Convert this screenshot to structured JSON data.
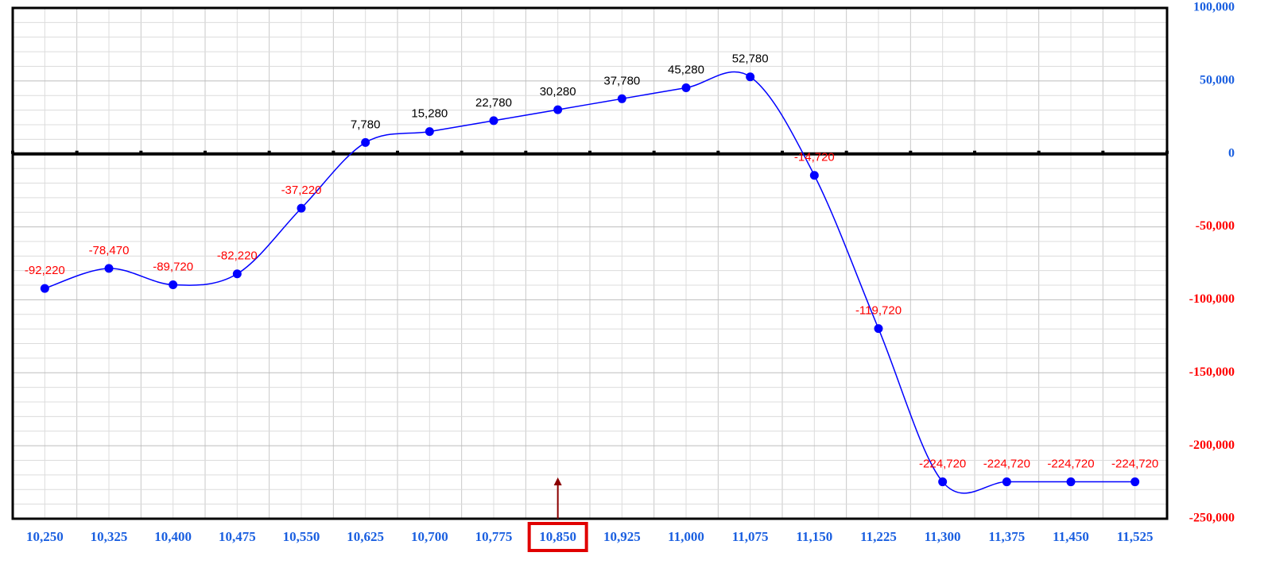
{
  "chart_data": {
    "type": "line",
    "categories": [
      "10,250",
      "10,325",
      "10,400",
      "10,475",
      "10,550",
      "10,625",
      "10,700",
      "10,775",
      "10,850",
      "10,925",
      "11,000",
      "11,075",
      "11,150",
      "11,225",
      "11,300",
      "11,375",
      "11,450",
      "11,525"
    ],
    "values": [
      -92220,
      -78470,
      -89720,
      -82220,
      -37220,
      7780,
      15280,
      22780,
      30280,
      37780,
      45280,
      52780,
      -14720,
      -119720,
      -224720,
      -224720,
      -224720,
      -224720
    ],
    "value_labels": [
      "-92,220",
      "-78,470",
      "-89,720",
      "-82,220",
      "-37,220",
      "7,780",
      "15,280",
      "22,780",
      "30,280",
      "37,780",
      "45,280",
      "52,780",
      "-14,720",
      "-119,720",
      "-224,720",
      "-224,720",
      "-224,720",
      "-224,720"
    ],
    "color": "#0000ff",
    "positive_label_color": "#000000",
    "negative_label_color": "#ff0000",
    "positive_tick_color": "#1a5fe0",
    "negative_tick_color": "#ff0000",
    "ylim": [
      -250000,
      100000
    ],
    "yticks": [
      {
        "value": -250000,
        "label": "-250,000"
      },
      {
        "value": -200000,
        "label": "-200,000"
      },
      {
        "value": -150000,
        "label": "-150,000"
      },
      {
        "value": -100000,
        "label": "-100,000"
      },
      {
        "value": -50000,
        "label": "-50,000"
      },
      0,
      {
        "value": 50000,
        "label": "50,000"
      },
      {
        "value": 100000,
        "label": "100,000"
      }
    ],
    "grid": true,
    "smooth": true,
    "current_index": 8
  }
}
